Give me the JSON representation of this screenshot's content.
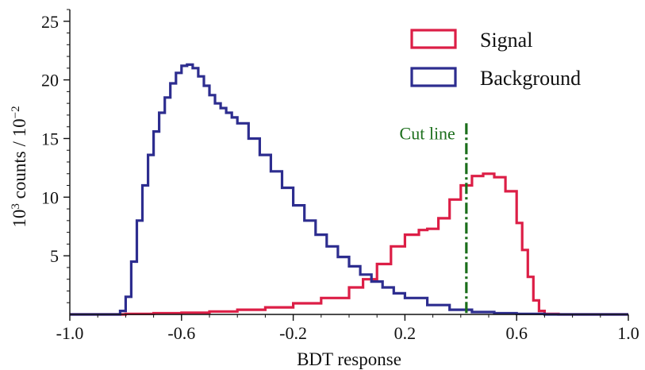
{
  "chart_data": {
    "type": "line",
    "style": "step histogram",
    "xlabel": "BDT response",
    "ylabel": {
      "base": "10",
      "exp": "3",
      "mid": " counts / 10",
      "exp2": "−2"
    },
    "xlim": [
      -1.0,
      1.0
    ],
    "ylim": [
      0,
      26
    ],
    "x_ticks": [
      -1.0,
      -0.6,
      -0.2,
      0.2,
      0.6,
      1.0
    ],
    "x_tick_labels": [
      "-1.0",
      "-0.6",
      "-0.2",
      "0.2",
      "0.6",
      "1.0"
    ],
    "y_ticks": [
      5,
      10,
      15,
      20,
      25
    ],
    "y_tick_labels": [
      "5",
      "10",
      "15",
      "20",
      "25"
    ],
    "grid": false,
    "legend_position": "top-right",
    "annotation": {
      "label": "Cut line",
      "x": 0.42,
      "color": "#1b6e1b",
      "y_top": 16.3
    },
    "series": [
      {
        "name": "Signal",
        "color": "#dc1e46",
        "x": [
          -1.0,
          -0.9,
          -0.8,
          -0.7,
          -0.6,
          -0.5,
          -0.4,
          -0.3,
          -0.2,
          -0.1,
          0.0,
          0.05,
          0.1,
          0.15,
          0.2,
          0.25,
          0.28,
          0.32,
          0.36,
          0.4,
          0.44,
          0.48,
          0.52,
          0.56,
          0.6,
          0.62,
          0.64,
          0.66,
          0.68,
          0.7,
          0.75,
          0.8,
          0.9,
          1.0
        ],
        "y": [
          0.0,
          0.0,
          0.05,
          0.1,
          0.15,
          0.25,
          0.4,
          0.6,
          0.95,
          1.4,
          2.3,
          3.0,
          4.3,
          5.8,
          6.8,
          7.2,
          7.3,
          8.2,
          9.8,
          11.0,
          11.8,
          12.0,
          11.7,
          10.5,
          7.8,
          5.5,
          3.2,
          1.2,
          0.3,
          0.05,
          0.0,
          0.0,
          0.0,
          0.0
        ]
      },
      {
        "name": "Background",
        "color": "#2d2d8f",
        "x": [
          -1.0,
          -0.9,
          -0.84,
          -0.82,
          -0.8,
          -0.78,
          -0.76,
          -0.74,
          -0.72,
          -0.7,
          -0.68,
          -0.66,
          -0.64,
          -0.62,
          -0.6,
          -0.58,
          -0.56,
          -0.54,
          -0.52,
          -0.5,
          -0.48,
          -0.46,
          -0.44,
          -0.42,
          -0.4,
          -0.36,
          -0.32,
          -0.28,
          -0.24,
          -0.2,
          -0.16,
          -0.12,
          -0.08,
          -0.04,
          0.0,
          0.04,
          0.08,
          0.12,
          0.16,
          0.2,
          0.28,
          0.36,
          0.44,
          0.52,
          0.6,
          0.7,
          0.8,
          0.9,
          1.0
        ],
        "y": [
          0.0,
          0.0,
          0.0,
          0.3,
          1.5,
          4.5,
          8.0,
          11.0,
          13.6,
          15.6,
          17.2,
          18.5,
          19.7,
          20.6,
          21.2,
          21.3,
          21.0,
          20.3,
          19.5,
          18.7,
          18.0,
          17.6,
          17.2,
          16.8,
          16.3,
          15.0,
          13.6,
          12.2,
          10.8,
          9.3,
          8.0,
          6.8,
          5.8,
          4.9,
          4.1,
          3.4,
          2.8,
          2.3,
          1.8,
          1.4,
          0.8,
          0.4,
          0.2,
          0.1,
          0.05,
          0.0,
          0.0,
          0.0,
          0.0
        ]
      }
    ]
  }
}
